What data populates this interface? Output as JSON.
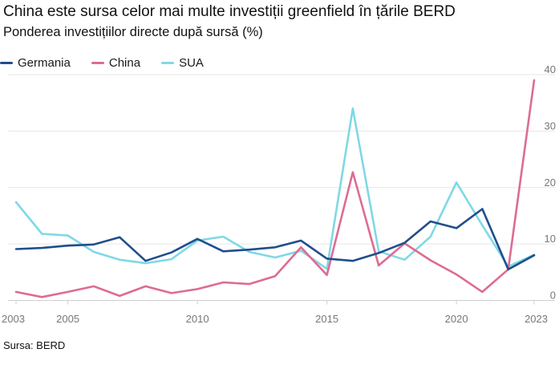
{
  "title": "China este sursa celor mai multe investiții greenfield în țările BERD",
  "subtitle": "Ponderea investițiilor directe după sursă (%)",
  "source": "Sursa: BERD",
  "colors": {
    "Germania": "#1f4e8c",
    "China": "#de6b93",
    "SUA": "#7fd8e6",
    "grid": "#e6e6e6",
    "tick": "#777777"
  },
  "chart_data": {
    "type": "line",
    "title": "China este sursa celor mai multe investiții greenfield în țările BERD",
    "subtitle": "Ponderea investițiilor directe după sursă (%)",
    "x": [
      2003,
      2004,
      2005,
      2006,
      2007,
      2008,
      2009,
      2010,
      2011,
      2012,
      2013,
      2014,
      2015,
      2016,
      2017,
      2018,
      2019,
      2020,
      2021,
      2022,
      2023
    ],
    "xticks": [
      "2003",
      "2005",
      "2010",
      "2015",
      "2020",
      "2023"
    ],
    "xtick_values": [
      2003,
      2005,
      2010,
      2015,
      2020,
      2023
    ],
    "yticks": [
      "0",
      "10",
      "20",
      "30",
      "40"
    ],
    "ytick_values": [
      0,
      10,
      20,
      30,
      40
    ],
    "xlim": [
      2003,
      2023
    ],
    "ylim": [
      0,
      40
    ],
    "grid": true,
    "y_axis_side": "right",
    "legend_position": "top-left",
    "series": [
      {
        "name": "Germania",
        "color": "#1f4e8c",
        "values": [
          9.1,
          9.3,
          9.7,
          9.9,
          11.2,
          7.0,
          8.5,
          10.9,
          8.7,
          9.0,
          9.4,
          10.6,
          7.4,
          7.0,
          8.4,
          10.2,
          14.0,
          12.8,
          16.2,
          5.5,
          8.0
        ]
      },
      {
        "name": "China",
        "color": "#de6b93",
        "values": [
          1.5,
          0.6,
          1.5,
          2.5,
          0.8,
          2.5,
          1.3,
          2.0,
          3.2,
          2.9,
          4.3,
          9.4,
          4.5,
          22.7,
          6.2,
          10.1,
          7.1,
          4.6,
          1.5,
          5.5,
          39.0
        ]
      },
      {
        "name": "SUA",
        "color": "#7fd8e6",
        "values": [
          17.4,
          11.8,
          11.5,
          8.6,
          7.2,
          6.6,
          7.3,
          10.6,
          11.3,
          8.6,
          7.6,
          8.8,
          5.6,
          34.0,
          8.7,
          7.2,
          11.3,
          20.9,
          13.3,
          6.0,
          8.1
        ]
      }
    ]
  }
}
